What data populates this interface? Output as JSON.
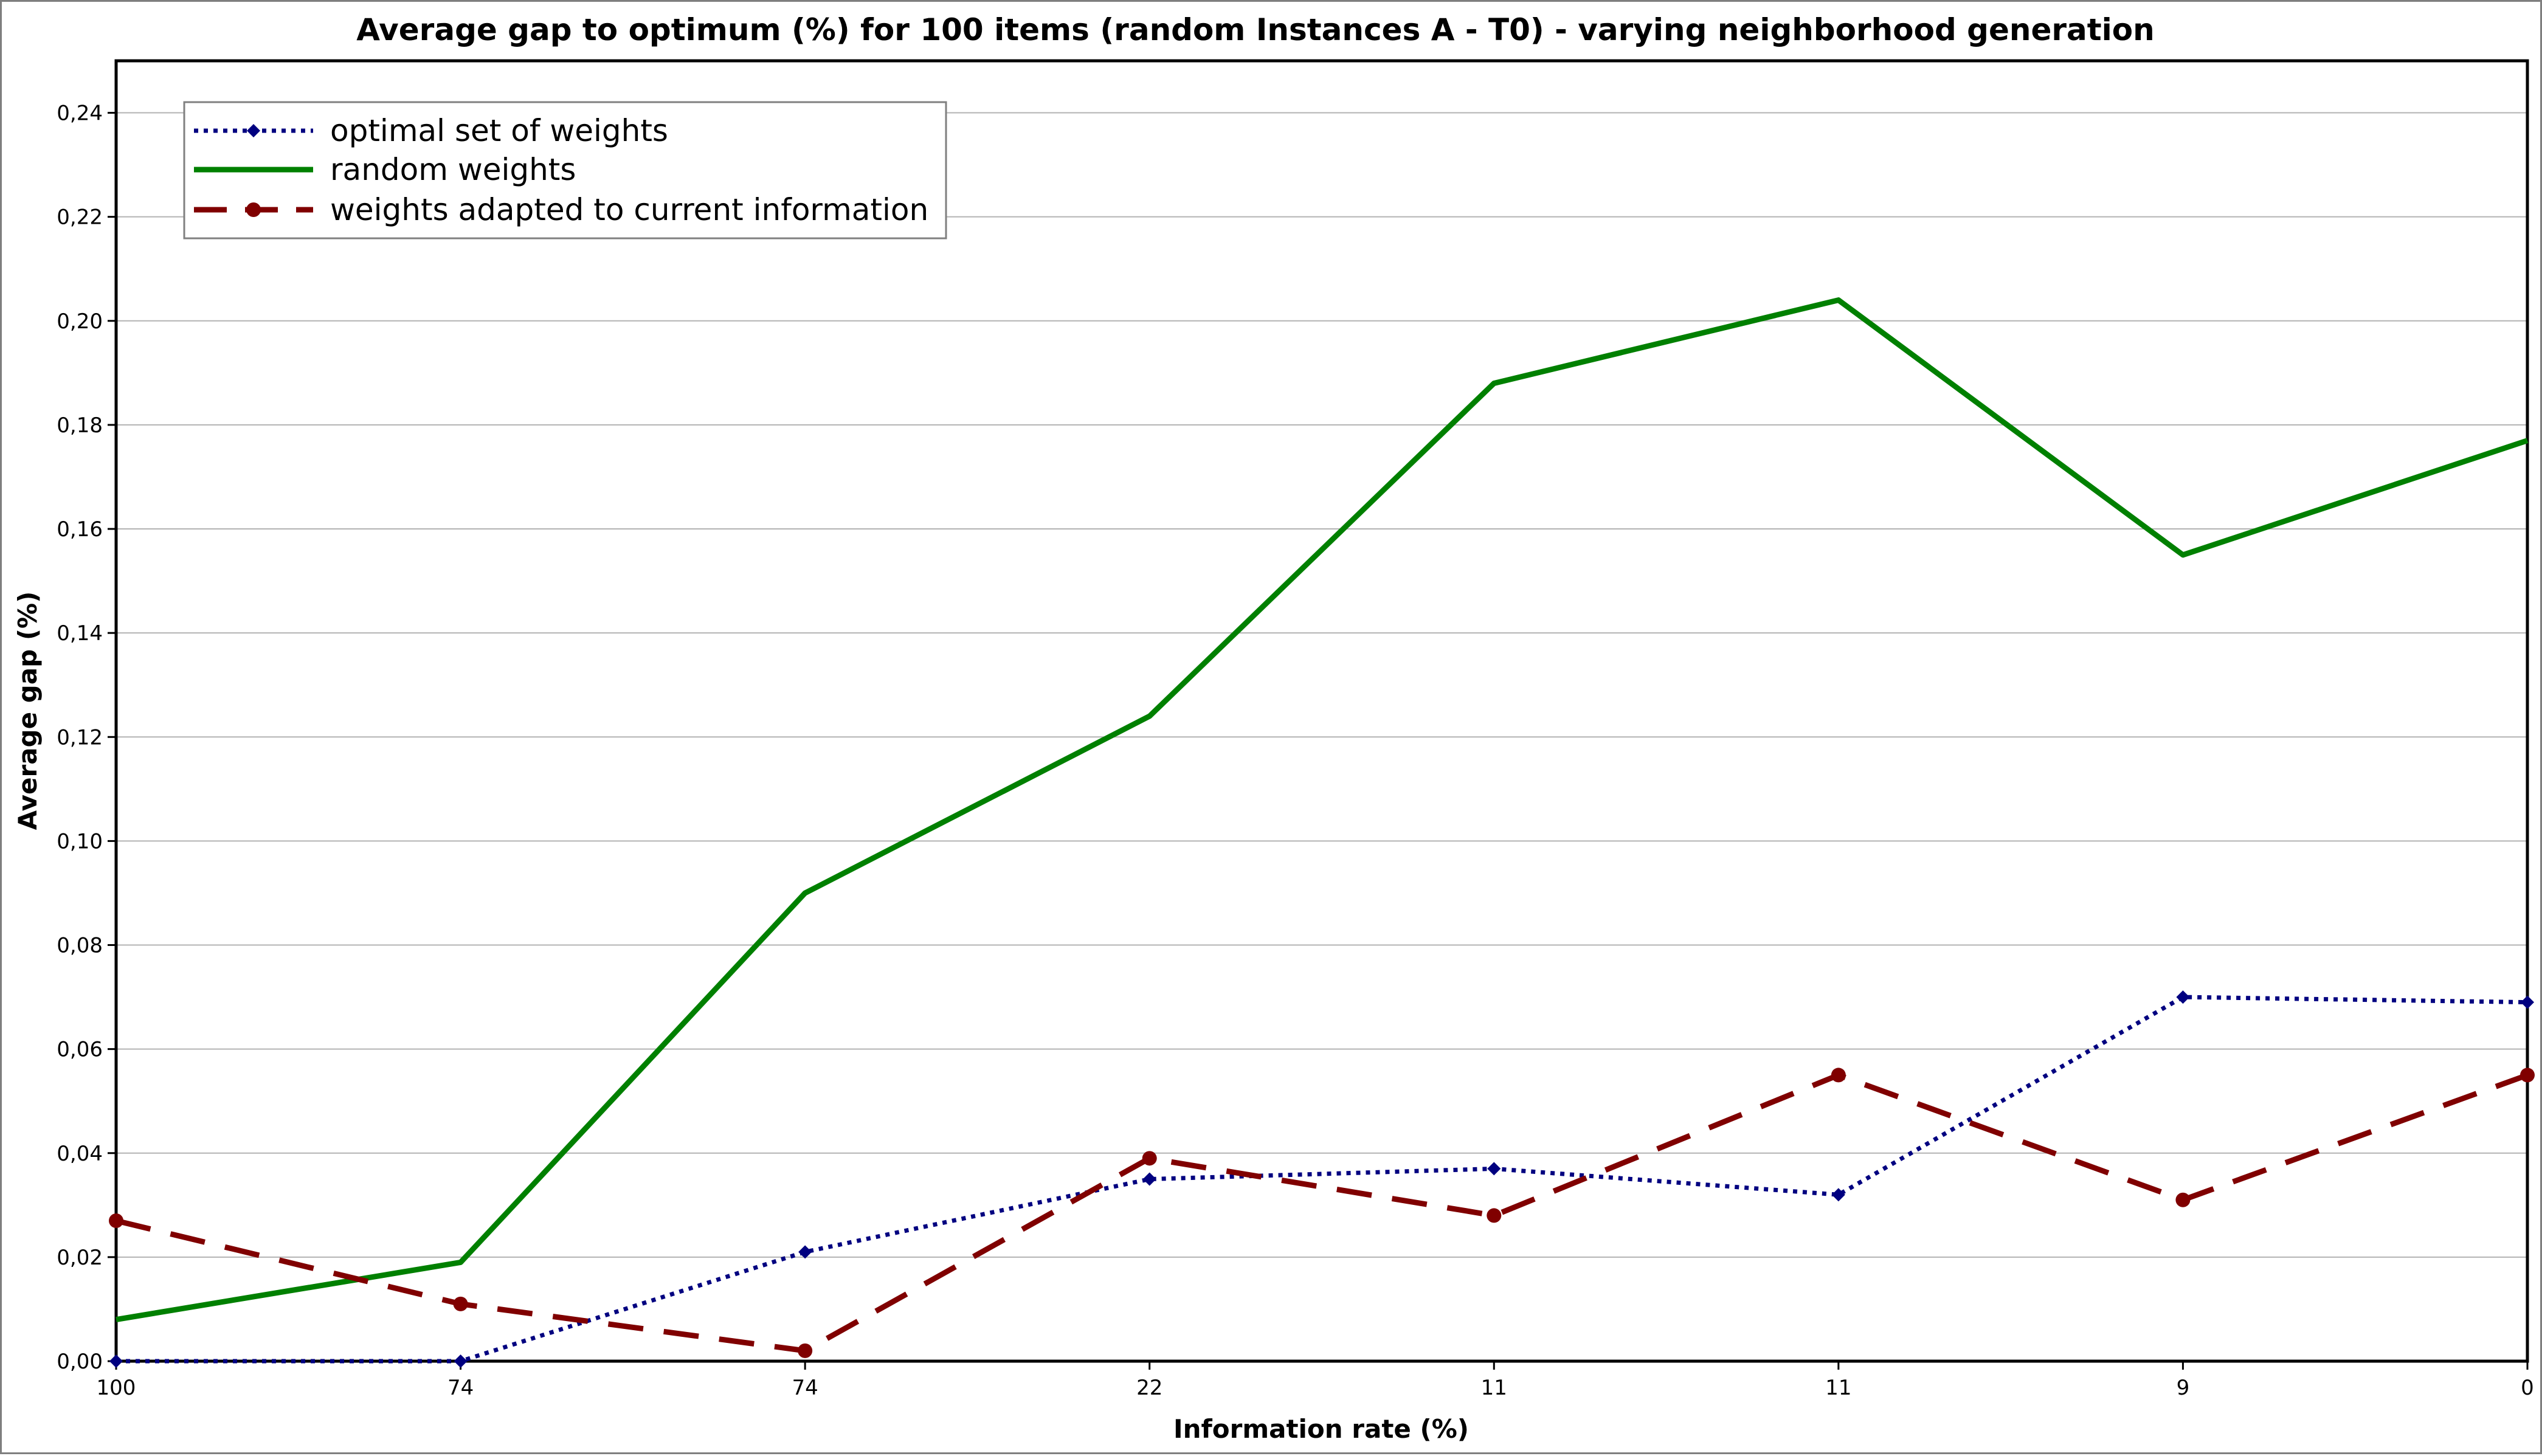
{
  "chart_data": {
    "type": "line",
    "title": "Average gap to optimum (%) for 100 items (random Instances A - T0) - varying neighborhood generation",
    "xlabel": "Information rate (%)",
    "ylabel": "Average gap (%)",
    "categories": [
      "100",
      "74",
      "74",
      "22",
      "11",
      "11",
      "9",
      "0"
    ],
    "ylim": [
      0,
      0.25
    ],
    "yticks": [
      "0,00",
      "0,02",
      "0,04",
      "0,06",
      "0,08",
      "0,10",
      "0,12",
      "0,14",
      "0,16",
      "0,18",
      "0,20",
      "0,22",
      "0,24"
    ],
    "grid": "horizontal",
    "legend_position": "top-left",
    "series": [
      {
        "name": "optimal set of weights",
        "color": "#000080",
        "style": "dotted",
        "marker": "diamond",
        "values": [
          0.0,
          0.0,
          0.021,
          0.035,
          0.037,
          0.032,
          0.07,
          0.069
        ]
      },
      {
        "name": "random weights",
        "color": "#008000",
        "style": "solid",
        "marker": "none",
        "values": [
          0.008,
          0.019,
          0.09,
          0.124,
          0.188,
          0.204,
          0.155,
          0.177
        ]
      },
      {
        "name": "weights adapted to current information",
        "color": "#800000",
        "style": "dashed",
        "marker": "circle",
        "values": [
          0.027,
          0.011,
          0.002,
          0.039,
          0.028,
          0.055,
          0.031,
          0.055
        ]
      }
    ]
  }
}
